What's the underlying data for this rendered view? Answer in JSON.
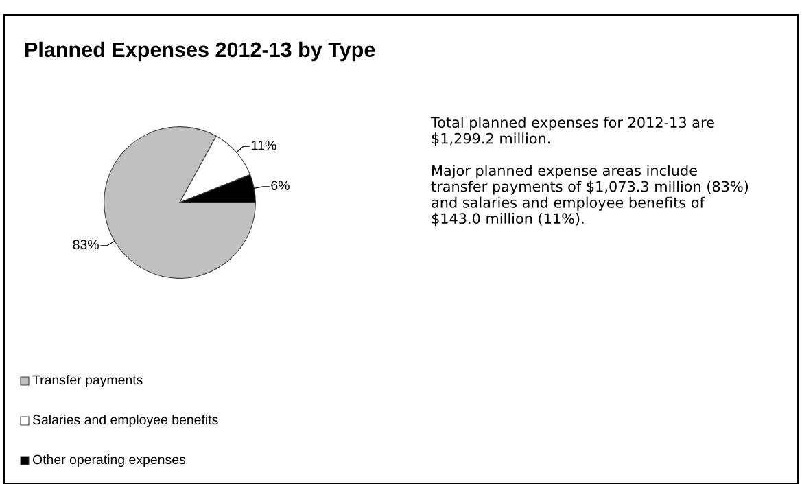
{
  "chart_data": {
    "type": "pie",
    "title": "Planned Expenses 2012-13 by Type",
    "categories": [
      "Transfer payments",
      "Salaries and employee benefits",
      "Other operating expenses"
    ],
    "values": [
      83,
      11,
      6
    ],
    "colors": [
      "#c0c0c0",
      "#ffffff",
      "#000000"
    ],
    "value_labels": [
      "83%",
      "11%",
      "6%"
    ],
    "legend": "bottom left",
    "annotations": [
      "Total planned expenses for 2012-13 are $1,299.2 million.",
      "Major planned expense areas include transfer payments of $1,073.3 million (83%) and salaries and employee benefits of $143.0 million (11%)."
    ]
  }
}
